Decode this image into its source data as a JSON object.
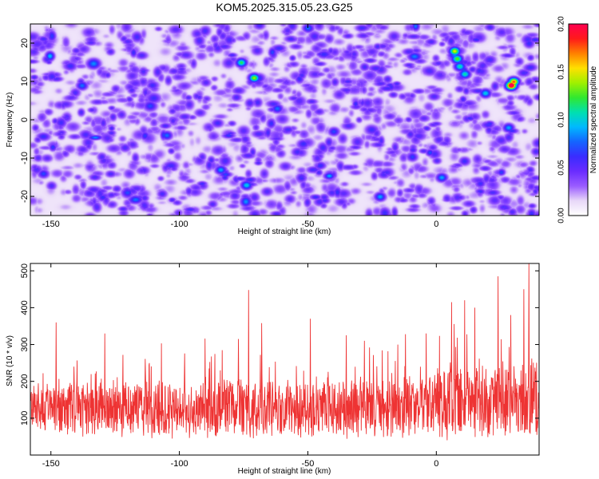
{
  "title": "KOM5.2025.315.05.23.G25",
  "chart_data": [
    {
      "type": "heatmap",
      "title": "KOM5.2025.315.05.23.G25",
      "xlabel": "Height of straight line (km)",
      "ylabel": "Frequency (Hz)",
      "xlim": [
        -158,
        40
      ],
      "ylim": [
        -25,
        25
      ],
      "xticks": [
        -150,
        -100,
        -50,
        0
      ],
      "yticks": [
        -20,
        -10,
        0,
        10,
        20
      ],
      "xtick_labels": [
        "-150",
        "-100",
        "-50",
        "0"
      ],
      "ytick_labels": [
        "-20",
        "-10",
        "0",
        "10",
        "20"
      ],
      "colorbar": {
        "label": "Normalized spectral amplitude",
        "range": [
          0.0,
          0.2
        ],
        "ticks": [
          "0.00",
          "0.05",
          "0.10",
          "0.15",
          "0.20"
        ],
        "tick_values": [
          0.0,
          0.05,
          0.1,
          0.15,
          0.2
        ],
        "colormap": [
          "#ffffff",
          "#e8d8f8",
          "#9a5cff",
          "#6a2cff",
          "#3a2cff",
          "#1464ff",
          "#00b8ff",
          "#00e0b0",
          "#30e830",
          "#a0f000",
          "#ffe000",
          "#ff8000",
          "#ff1a1a",
          "#ff0050"
        ]
      },
      "background_level": 0.03,
      "hotspots": [
        {
          "x": 7,
          "y": 18,
          "value": 0.14
        },
        {
          "x": 8,
          "y": 16,
          "value": 0.12
        },
        {
          "x": 9,
          "y": 14,
          "value": 0.1
        },
        {
          "x": 11,
          "y": 12,
          "value": 0.1
        },
        {
          "x": 29,
          "y": 9,
          "value": 0.2
        },
        {
          "x": 30,
          "y": 10,
          "value": 0.17
        },
        {
          "x": -71,
          "y": 11,
          "value": 0.13
        },
        {
          "x": -76,
          "y": 15,
          "value": 0.11
        },
        {
          "x": 19,
          "y": 7,
          "value": 0.09
        },
        {
          "x": -62,
          "y": 3,
          "value": 0.07
        },
        {
          "x": -84,
          "y": -13,
          "value": 0.08
        },
        {
          "x": -74,
          "y": -17,
          "value": 0.09
        },
        {
          "x": -50,
          "y": 24,
          "value": 0.07
        },
        {
          "x": -138,
          "y": 9,
          "value": 0.07
        },
        {
          "x": -105,
          "y": -4,
          "value": 0.07
        },
        {
          "x": -22,
          "y": -20,
          "value": 0.08
        },
        {
          "x": 2,
          "y": -15,
          "value": 0.08
        },
        {
          "x": 28,
          "y": -2,
          "value": 0.08
        },
        {
          "x": -153,
          "y": -14,
          "value": 0.06
        },
        {
          "x": -40,
          "y": -3,
          "value": 0.06
        }
      ]
    },
    {
      "type": "line",
      "xlabel": "Height of straight line (km)",
      "ylabel": "SNR (10 * v/v)",
      "xlim": [
        -158,
        40
      ],
      "ylim": [
        0,
        520
      ],
      "xticks": [
        -150,
        -100,
        -50,
        0
      ],
      "yticks": [
        100,
        200,
        300,
        400,
        500
      ],
      "xtick_labels": [
        "-150",
        "-100",
        "-50",
        "0"
      ],
      "ytick_labels": [
        "100",
        "200",
        "300",
        "400",
        "500"
      ],
      "series": [
        {
          "name": "SNR",
          "color": "#ee3333",
          "x": [
            -158,
            -152,
            -146,
            -140,
            -134,
            -128,
            -122,
            -116,
            -110,
            -104,
            -98,
            -92,
            -86,
            -80,
            -74,
            -68,
            -62,
            -56,
            -50,
            -44,
            -38,
            -32,
            -26,
            -20,
            -14,
            -8,
            -2,
            4,
            10,
            16,
            22,
            28,
            34,
            40
          ],
          "baseline": [
            125,
            125,
            126,
            125,
            125,
            126,
            125,
            125,
            124,
            125,
            126,
            126,
            127,
            127,
            126,
            125,
            126,
            126,
            125,
            125,
            126,
            126,
            126,
            127,
            129,
            131,
            134,
            141,
            148,
            151,
            150,
            148,
            150,
            152
          ],
          "spread": [
            75,
            78,
            80,
            80,
            80,
            82,
            82,
            82,
            82,
            82,
            85,
            86,
            88,
            88,
            88,
            88,
            88,
            88,
            86,
            86,
            86,
            86,
            86,
            88,
            92,
            96,
            100,
            110,
            118,
            120,
            118,
            118,
            124,
            126
          ],
          "peaks": [
            {
              "x": -148,
              "y": 360
            },
            {
              "x": -153,
              "y": 222
            },
            {
              "x": -129,
              "y": 330
            },
            {
              "x": -122,
              "y": 272
            },
            {
              "x": -107,
              "y": 303
            },
            {
              "x": -90,
              "y": 316
            },
            {
              "x": -77,
              "y": 315
            },
            {
              "x": -73,
              "y": 448
            },
            {
              "x": -68,
              "y": 358
            },
            {
              "x": -49,
              "y": 370
            },
            {
              "x": -35,
              "y": 325
            },
            {
              "x": -28,
              "y": 310
            },
            {
              "x": -12,
              "y": 328
            },
            {
              "x": -4,
              "y": 330
            },
            {
              "x": 6,
              "y": 415
            },
            {
              "x": 11,
              "y": 420
            },
            {
              "x": 15,
              "y": 400
            },
            {
              "x": 24,
              "y": 485
            },
            {
              "x": 29,
              "y": 380
            },
            {
              "x": 36,
              "y": 520
            },
            {
              "x": 34,
              "y": 450
            }
          ]
        }
      ]
    }
  ]
}
